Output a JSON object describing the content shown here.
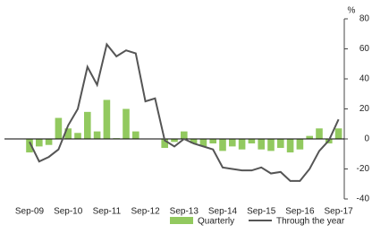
{
  "chart_data": {
    "type": "bar_line",
    "y_unit": "%",
    "categories": [
      "Sep-09",
      null,
      null,
      null,
      "Sep-10",
      null,
      null,
      null,
      "Sep-11",
      null,
      null,
      null,
      "Sep-12",
      null,
      null,
      null,
      "Sep-13",
      null,
      null,
      null,
      "Sep-14",
      null,
      null,
      null,
      "Sep-15",
      null,
      null,
      null,
      "Sep-16",
      null,
      null,
      null,
      "Sep-17"
    ],
    "series": [
      {
        "name": "Quarterly",
        "type": "bar",
        "color": "#92c95f",
        "values": [
          -9,
          -5,
          -4,
          14,
          7,
          4,
          18,
          5,
          26,
          0.5,
          20,
          5,
          0,
          0,
          -6,
          -2,
          5,
          -3,
          -5,
          -3,
          -8,
          -5,
          -7,
          -3,
          -7,
          -8,
          -6,
          -9,
          -7,
          2,
          7,
          -3,
          7
        ]
      },
      {
        "name": "Through the year",
        "type": "line",
        "color": "#555555",
        "values": [
          -2,
          -15,
          -12,
          -7,
          9,
          20,
          48,
          36,
          63,
          55,
          59,
          57,
          25,
          27,
          -1,
          -5,
          0,
          -3,
          -5,
          -7,
          -19,
          -20,
          -21,
          -21,
          -19,
          -23,
          -22,
          -28,
          -28,
          -20,
          -8,
          -1,
          13
        ]
      }
    ],
    "ylim": [
      -40,
      80
    ],
    "yticks": [
      -40,
      -20,
      0,
      20,
      40,
      60,
      80
    ]
  }
}
